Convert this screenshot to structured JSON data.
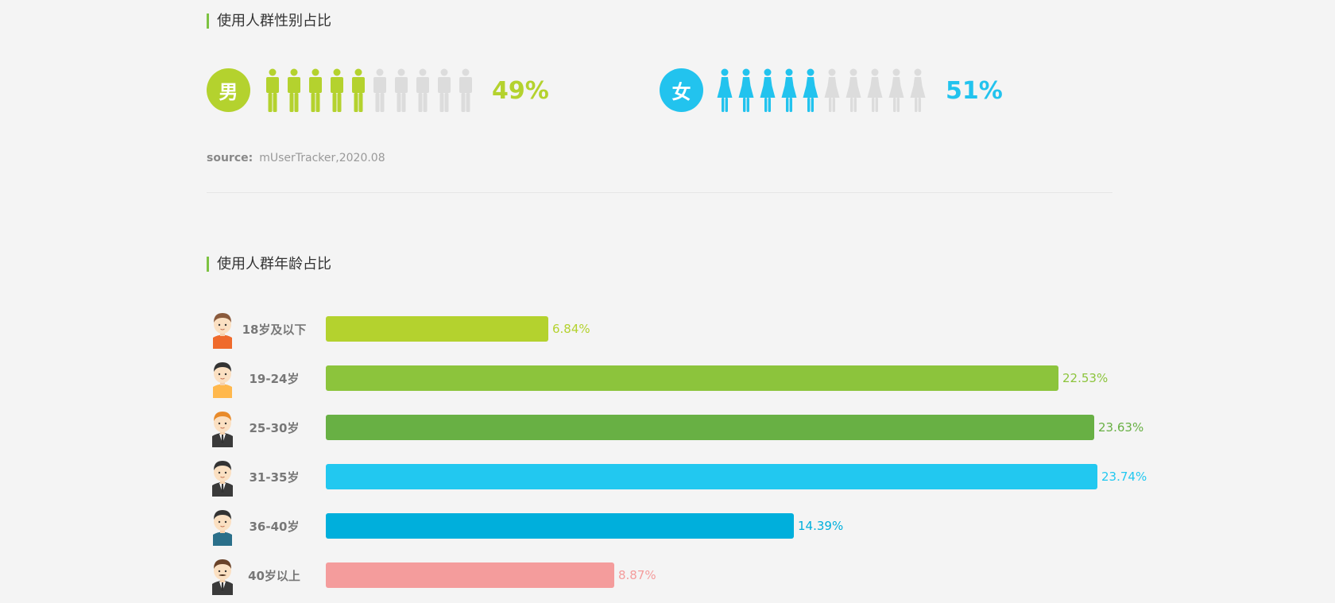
{
  "gender_section": {
    "title": "使用人群性别占比",
    "male": {
      "icon_label": "男",
      "percent_text": "49%",
      "color": "#b4d22e",
      "filled_icons": 5,
      "total_icons": 10
    },
    "female": {
      "icon_label": "女",
      "percent_text": "51%",
      "color": "#22c3ee",
      "filled_icons": 5,
      "total_icons": 10
    },
    "inactive_icon_color": "#dcdcdc",
    "source_label": "source:",
    "source_value": "mUserTracker,2020.08"
  },
  "age_section": {
    "title": "使用人群年龄占比"
  },
  "chart_data": {
    "type": "bar",
    "orientation": "horizontal",
    "categories": [
      "18岁及以下",
      "19-24岁",
      "25-30岁",
      "31-35岁",
      "36-40岁",
      "40岁以上"
    ],
    "values": [
      6.84,
      22.53,
      23.63,
      23.74,
      14.39,
      8.87
    ],
    "value_labels": [
      "6.84%",
      "22.53%",
      "23.63%",
      "23.74%",
      "14.39%",
      "8.87%"
    ],
    "colors": [
      "#b4d22e",
      "#8cc43c",
      "#68b044",
      "#22c8f0",
      "#00afdc",
      "#f49c9c"
    ],
    "avatars": [
      "boy-avatar",
      "young-man-avatar",
      "man-tie-avatar",
      "man-suit-avatar",
      "man-blue-shirt-avatar",
      "mustache-man-avatar"
    ],
    "xlim": [
      0,
      24.2
    ],
    "title": "",
    "xlabel": "",
    "ylabel": ""
  }
}
